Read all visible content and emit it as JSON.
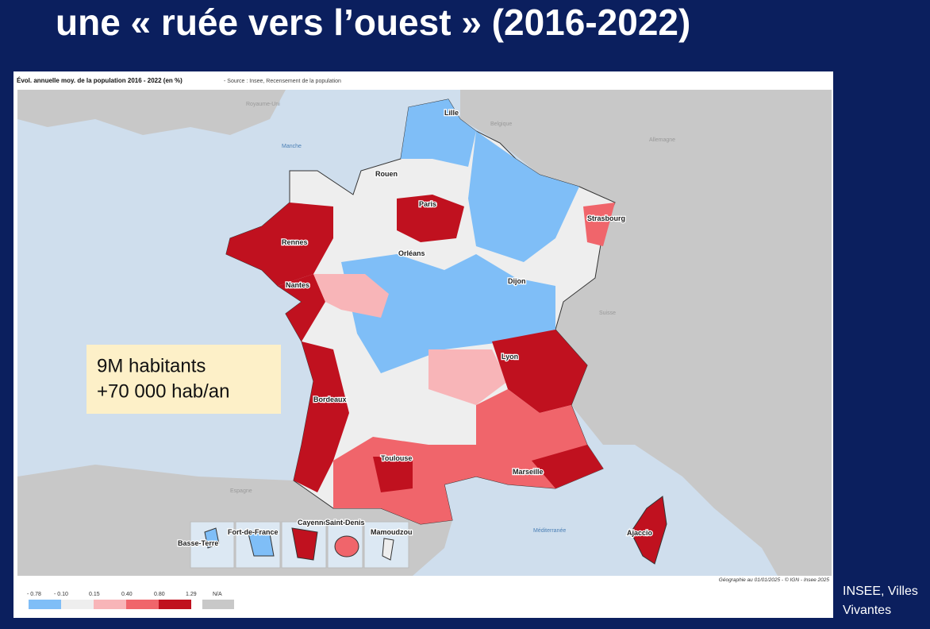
{
  "title": "une « ruée vers l’ouest » (2016-2022)",
  "map": {
    "header": "Évol. annuelle moy. de la population 2016 - 2022 (en %)",
    "source": "- Source : Insee, Recensement de la population",
    "cities": [
      "Lille",
      "Rouen",
      "Paris",
      "Strasbourg",
      "Rennes",
      "Orléans",
      "Dijon",
      "Nantes",
      "Lyon",
      "Bordeaux",
      "Toulouse",
      "Marseille",
      "Ajaccio"
    ],
    "countries": [
      "Royaume-Uni",
      "Belgique",
      "Allemagne",
      "Suisse",
      "Espagne"
    ],
    "seas": [
      "Manche",
      "Méditerranée"
    ],
    "insets": [
      "Basse-Terre",
      "Fort-de-France",
      "Cayenne",
      "Saint-Denis",
      "Mamoudzou"
    ],
    "footer": "Géographie au 01/01/2025 - © IGN - Insee 2025"
  },
  "legend": {
    "breaks": [
      "- 0.78",
      "- 0.10",
      "0.15",
      "0.40",
      "0.80",
      "1.29"
    ],
    "na": "N/A"
  },
  "callout": [
    "9M habitants",
    "+70 000 hab/an"
  ],
  "credit": [
    "INSEE, Villes",
    "Vivantes"
  ]
}
